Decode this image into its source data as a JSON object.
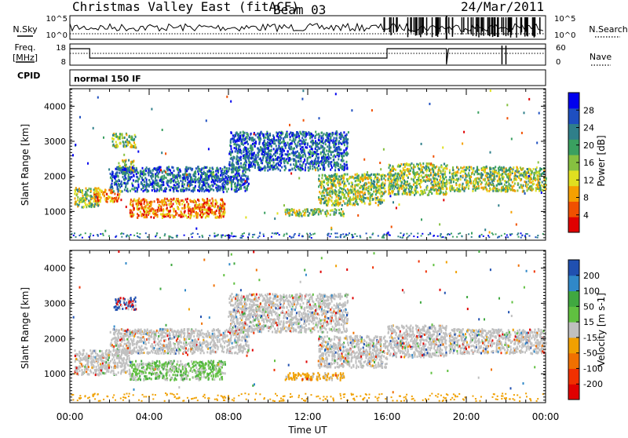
{
  "header": {
    "title": "Christmas Valley East (fitACF)",
    "beam": "Beam 03",
    "date": "24/Mar/2011"
  },
  "mini_panels": {
    "nsky_label": "N.Sky",
    "nsky_ticks": [
      "10^5",
      "10^0"
    ],
    "nsearch_label": "N.Search",
    "nsearch_ticks": [
      "10^5",
      "10^0"
    ],
    "freq_label_1": "Freq.",
    "freq_label_2": "[MHz]",
    "freq_ticks": [
      "18",
      "8"
    ],
    "nave_label": "Nave",
    "nave_ticks": [
      "60",
      "0"
    ],
    "cpid_label": "CPID",
    "cpid_value": "normal 150 IF"
  },
  "chart_data": [
    {
      "type": "heatmap",
      "title": "",
      "xlabel": "",
      "ylabel": "Slant Range [km]",
      "ylim": [
        180,
        4500
      ],
      "yticks": [
        "1000",
        "2000",
        "3000",
        "4000"
      ],
      "xlim": [
        0,
        24
      ],
      "colorbar_label": "Power [dB]",
      "colorbar_ticks": [
        "28",
        "24",
        "20",
        "16",
        "12",
        "8",
        "4"
      ],
      "colorbar_colors": [
        "#0000ee",
        "#1e4fc0",
        "#2f7f8a",
        "#3aa060",
        "#86c040",
        "#e0e020",
        "#f5a000",
        "#f05000",
        "#e00000"
      ],
      "echo_regions": [
        {
          "t": [
            0.2,
            1.5
          ],
          "r": [
            1150,
            1700
          ],
          "level": "mid"
        },
        {
          "t": [
            1.2,
            2.6
          ],
          "r": [
            1300,
            1650
          ],
          "level": "high"
        },
        {
          "t": [
            2.4,
            3.2
          ],
          "r": [
            2100,
            2500
          ],
          "level": "mid"
        },
        {
          "t": [
            2.1,
            3.3
          ],
          "r": [
            2850,
            3250
          ],
          "level": "mid"
        },
        {
          "t": [
            3.0,
            7.8
          ],
          "r": [
            850,
            1400
          ],
          "level": "high"
        },
        {
          "t": [
            2.0,
            9.0
          ],
          "r": [
            1600,
            2300
          ],
          "level": "low"
        },
        {
          "t": [
            8.0,
            14.0
          ],
          "r": [
            2200,
            3300
          ],
          "level": "low"
        },
        {
          "t": [
            12.5,
            15.9
          ],
          "r": [
            1200,
            2100
          ],
          "level": "mid"
        },
        {
          "t": [
            10.8,
            13.8
          ],
          "r": [
            900,
            1100
          ],
          "level": "mid"
        },
        {
          "t": [
            16.0,
            19.0
          ],
          "r": [
            1500,
            2400
          ],
          "level": "mid"
        },
        {
          "t": [
            19.1,
            24.0
          ],
          "r": [
            1600,
            2300
          ],
          "level": "mid"
        }
      ]
    },
    {
      "type": "heatmap",
      "title": "",
      "xlabel": "Time UT",
      "ylabel": "Slant Range [km]",
      "ylim": [
        180,
        4500
      ],
      "yticks": [
        "1000",
        "2000",
        "3000",
        "4000"
      ],
      "xlim": [
        0,
        24
      ],
      "xticks": [
        "00:00",
        "04:00",
        "08:00",
        "12:00",
        "16:00",
        "20:00",
        "00:00"
      ],
      "colorbar_label": "Velocity [m s-1]",
      "colorbar_ticks": [
        "200",
        "100",
        "50",
        "15",
        "-15",
        "-50",
        "-100",
        "-200"
      ],
      "colorbar_colors": [
        "#2050b0",
        "#3088c8",
        "#40a840",
        "#60c040",
        "#c0c0c0",
        "#f0a000",
        "#f07000",
        "#f03000",
        "#e00000"
      ],
      "echo_regions": [
        {
          "t": [
            0.2,
            3.0
          ],
          "r": [
            1000,
            1700
          ],
          "level": "ground"
        },
        {
          "t": [
            3.0,
            7.8
          ],
          "r": [
            850,
            1400
          ],
          "level": "green"
        },
        {
          "t": [
            2.0,
            9.0
          ],
          "r": [
            1600,
            2300
          ],
          "level": "ground"
        },
        {
          "t": [
            8.0,
            14.0
          ],
          "r": [
            2200,
            3300
          ],
          "level": "ground"
        },
        {
          "t": [
            12.5,
            16.0
          ],
          "r": [
            1200,
            2100
          ],
          "level": "ground"
        },
        {
          "t": [
            10.8,
            13.8
          ],
          "r": [
            850,
            1050
          ],
          "level": "orange"
        },
        {
          "t": [
            16.0,
            19.0
          ],
          "r": [
            1500,
            2400
          ],
          "level": "ground"
        },
        {
          "t": [
            19.1,
            24.0
          ],
          "r": [
            1600,
            2300
          ],
          "level": "ground"
        },
        {
          "t": [
            2.2,
            3.3
          ],
          "r": [
            2850,
            3200
          ],
          "level": "blue"
        }
      ]
    }
  ]
}
